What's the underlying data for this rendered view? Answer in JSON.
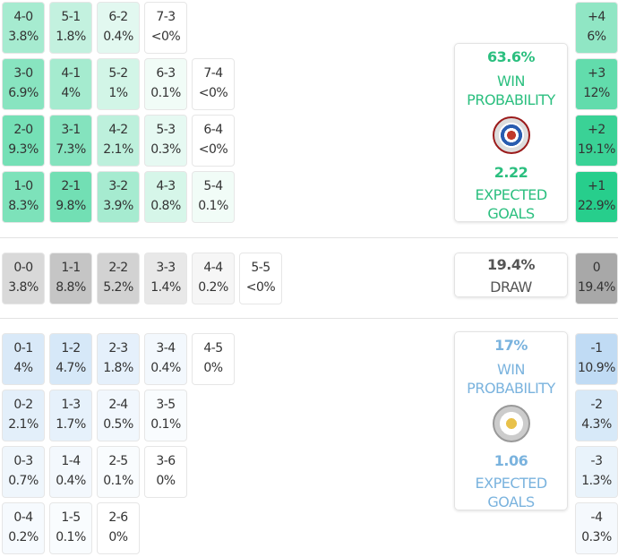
{
  "colors": {
    "home": "#2bbf7f",
    "draw": "#555555",
    "away": "#7ab3de"
  },
  "home": {
    "grid": [
      [
        [
          "4-0",
          "3.8%"
        ],
        [
          "5-1",
          "1.8%"
        ],
        [
          "6-2",
          "0.4%"
        ],
        [
          "7-3",
          "<0%"
        ]
      ],
      [
        [
          "3-0",
          "6.9%"
        ],
        [
          "4-1",
          "4%"
        ],
        [
          "5-2",
          "1%"
        ],
        [
          "6-3",
          "0.1%"
        ],
        [
          "7-4",
          "<0%"
        ]
      ],
      [
        [
          "2-0",
          "9.3%"
        ],
        [
          "3-1",
          "7.3%"
        ],
        [
          "4-2",
          "2.1%"
        ],
        [
          "5-3",
          "0.3%"
        ],
        [
          "6-4",
          "<0%"
        ]
      ],
      [
        [
          "1-0",
          "8.3%"
        ],
        [
          "2-1",
          "9.8%"
        ],
        [
          "3-2",
          "3.9%"
        ],
        [
          "4-3",
          "0.8%"
        ],
        [
          "5-4",
          "0.1%"
        ]
      ]
    ],
    "margins": [
      [
        "+4",
        "6%"
      ],
      [
        "+3",
        "12%"
      ],
      [
        "+2",
        "19.1%"
      ],
      [
        "+1",
        "22.9%"
      ]
    ],
    "win_pct": "63.6%",
    "win_label": "WIN PROBABILITY",
    "xg": "2.22",
    "xg_label": "EXPECTED GOALS",
    "logo": "reading-fc-crest"
  },
  "draw": {
    "grid": [
      [
        [
          "0-0",
          "3.8%"
        ],
        [
          "1-1",
          "8.8%"
        ],
        [
          "2-2",
          "5.2%"
        ],
        [
          "3-3",
          "1.4%"
        ],
        [
          "4-4",
          "0.2%"
        ],
        [
          "5-5",
          "<0%"
        ]
      ]
    ],
    "margins": [
      [
        "0",
        "19.4%"
      ]
    ],
    "pct": "19.4%",
    "label": "DRAW"
  },
  "away": {
    "grid": [
      [
        [
          "0-1",
          "4%"
        ],
        [
          "1-2",
          "4.7%"
        ],
        [
          "2-3",
          "1.8%"
        ],
        [
          "3-4",
          "0.4%"
        ],
        [
          "4-5",
          "0%"
        ]
      ],
      [
        [
          "0-2",
          "2.1%"
        ],
        [
          "1-3",
          "1.7%"
        ],
        [
          "2-4",
          "0.5%"
        ],
        [
          "3-5",
          "0.1%"
        ]
      ],
      [
        [
          "0-3",
          "0.7%"
        ],
        [
          "1-4",
          "0.4%"
        ],
        [
          "2-5",
          "0.1%"
        ],
        [
          "3-6",
          "0%"
        ]
      ],
      [
        [
          "0-4",
          "0.2%"
        ],
        [
          "1-5",
          "0.1%"
        ],
        [
          "2-6",
          "0%"
        ]
      ]
    ],
    "margins": [
      [
        "-1",
        "10.9%"
      ],
      [
        "-2",
        "4.3%"
      ],
      [
        "-3",
        "1.3%"
      ],
      [
        "-4",
        "0.3%"
      ]
    ],
    "win_pct": "17%",
    "win_label": "WIN PROBABILITY",
    "xg": "1.06",
    "xg_label": "EXPECTED GOALS",
    "logo": "mk-dons-crest"
  }
}
